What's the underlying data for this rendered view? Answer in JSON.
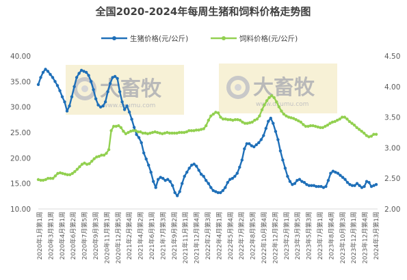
{
  "chart_data": {
    "type": "line",
    "title": "全国2020-2024年每周生猪和饲料价格走势图",
    "legend_position": "top",
    "grid": false,
    "y_left": {
      "min": 10,
      "max": 40,
      "step": 5,
      "ticks": [
        "10.00",
        "15.00",
        "20.00",
        "25.00",
        "30.00",
        "35.00",
        "40.00"
      ]
    },
    "y_right": {
      "min": 2.0,
      "max": 4.5,
      "step": 0.5,
      "ticks": [
        "2.00",
        "2.50",
        "3.00",
        "3.50",
        "4.00",
        "4.50"
      ]
    },
    "x_tick_labels": [
      "2020年1月第1周",
      "2020年3月第1周",
      "2020年4月第1周",
      "2020年6月第2周",
      "2020年7月第5周",
      "2020年9月第3周",
      "2020年11月第1周",
      "2020年12月第5周",
      "2021年2月第4周",
      "2021年4月第2周",
      "2021年6月第1周",
      "2021年7月第3周",
      "2021年9月第2周",
      "2021年11月第1周",
      "2021年12月第4周",
      "2022年2月第3周",
      "2022年4月第1周",
      "2022年5月第4周",
      "2022年7月第2周",
      "2022年8月第5周",
      "2022年10月第4周",
      "2022年12月第2周",
      "2023年2月第1周",
      "2023年3月第5周",
      "2023年5月第3周",
      "2023年7月第1周",
      "2023年8月第4周",
      "2023年10月第3周",
      "2023年12月第1周",
      "2023年12月第4周",
      "2024年3月第1周"
    ],
    "series": [
      {
        "name": "生猪价格(元/公斤)",
        "axis": "left",
        "color": "#1e6fb8",
        "values": [
          34.4,
          35.8,
          36.8,
          37.4,
          37.0,
          36.4,
          35.8,
          35.0,
          34.2,
          33.2,
          32.0,
          31.0,
          29.2,
          30.2,
          32.0,
          34.0,
          35.8,
          36.6,
          37.2,
          37.0,
          36.8,
          36.2,
          35.0,
          33.4,
          31.6,
          30.4,
          30.0,
          30.2,
          31.0,
          33.0,
          34.6,
          35.8,
          36.0,
          35.6,
          33.0,
          31.0,
          29.5,
          30.2,
          29.0,
          27.6,
          26.0,
          24.6,
          24.0,
          23.0,
          21.0,
          19.8,
          18.6,
          17.2,
          15.4,
          14.2,
          15.8,
          16.2,
          16.0,
          15.6,
          15.8,
          15.4,
          14.6,
          13.2,
          12.6,
          13.4,
          15.0,
          16.4,
          17.2,
          18.0,
          18.6,
          18.8,
          18.4,
          17.6,
          16.8,
          16.4,
          15.6,
          15.0,
          14.2,
          13.6,
          13.4,
          13.2,
          13.2,
          13.6,
          14.2,
          15.2,
          15.8,
          16.0,
          16.4,
          17.0,
          18.2,
          19.6,
          21.8,
          22.8,
          22.8,
          22.4,
          22.2,
          22.6,
          23.0,
          23.6,
          24.4,
          25.8,
          27.2,
          27.8,
          26.8,
          25.2,
          23.6,
          21.4,
          19.6,
          18.0,
          16.4,
          15.4,
          14.8,
          15.0,
          15.6,
          15.8,
          15.4,
          15.2,
          14.8,
          14.6,
          14.6,
          14.6,
          14.4,
          14.4,
          14.4,
          14.2,
          14.4,
          15.6,
          17.0,
          17.4,
          17.2,
          17.0,
          16.6,
          16.2,
          15.8,
          15.2,
          14.8,
          14.6,
          14.6,
          15.0,
          14.6,
          14.2,
          14.4,
          15.4,
          15.2,
          14.4,
          14.6,
          14.8
        ]
      },
      {
        "name": "饲料价格(元/公斤)",
        "axis": "right",
        "color": "#92d050",
        "values": [
          2.48,
          2.47,
          2.47,
          2.48,
          2.5,
          2.5,
          2.5,
          2.54,
          2.58,
          2.59,
          2.58,
          2.57,
          2.56,
          2.56,
          2.58,
          2.61,
          2.65,
          2.69,
          2.73,
          2.75,
          2.73,
          2.74,
          2.78,
          2.82,
          2.85,
          2.86,
          2.88,
          2.88,
          2.91,
          2.97,
          3.28,
          3.35,
          3.35,
          3.36,
          3.33,
          3.27,
          3.23,
          3.25,
          3.27,
          3.28,
          3.28,
          3.26,
          3.26,
          3.24,
          3.24,
          3.23,
          3.24,
          3.25,
          3.26,
          3.25,
          3.24,
          3.23,
          3.24,
          3.25,
          3.24,
          3.24,
          3.24,
          3.24,
          3.25,
          3.25,
          3.25,
          3.26,
          3.28,
          3.28,
          3.28,
          3.29,
          3.29,
          3.3,
          3.31,
          3.36,
          3.45,
          3.52,
          3.55,
          3.58,
          3.57,
          3.5,
          3.47,
          3.47,
          3.46,
          3.46,
          3.45,
          3.46,
          3.46,
          3.45,
          3.42,
          3.4,
          3.4,
          3.41,
          3.42,
          3.45,
          3.47,
          3.52,
          3.62,
          3.7,
          3.77,
          3.82,
          3.85,
          3.82,
          3.75,
          3.67,
          3.6,
          3.55,
          3.52,
          3.5,
          3.49,
          3.48,
          3.46,
          3.44,
          3.42,
          3.38,
          3.35,
          3.35,
          3.36,
          3.36,
          3.35,
          3.34,
          3.33,
          3.33,
          3.35,
          3.37,
          3.4,
          3.42,
          3.43,
          3.45,
          3.47,
          3.5,
          3.5,
          3.47,
          3.43,
          3.4,
          3.37,
          3.33,
          3.3,
          3.27,
          3.24,
          3.2,
          3.18,
          3.19,
          3.22,
          3.22
        ]
      }
    ]
  },
  "watermark": {
    "brand": "大畜牧",
    "url": "www.dxumu.com"
  }
}
